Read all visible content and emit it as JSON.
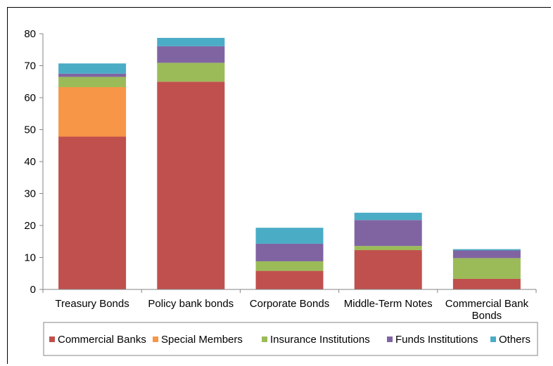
{
  "chart_data": {
    "type": "bar",
    "stacked": true,
    "categories": [
      [
        "Treasury Bonds"
      ],
      [
        "Policy bank bonds"
      ],
      [
        "Corporate Bonds"
      ],
      [
        "Middle-Term Notes"
      ],
      [
        "Commercial Bank",
        "Bonds"
      ]
    ],
    "series": [
      {
        "name": "Commercial Banks",
        "color": "#c0504d",
        "values": [
          47.8,
          65.0,
          5.8,
          12.3,
          3.3
        ]
      },
      {
        "name": "Special Members",
        "color": "#f79646",
        "values": [
          15.5,
          0.0,
          0.0,
          0.0,
          0.0
        ]
      },
      {
        "name": "Insurance Institutions",
        "color": "#9bbb59",
        "values": [
          3.2,
          5.9,
          3.0,
          1.3,
          6.5
        ]
      },
      {
        "name": "Funds Institutions",
        "color": "#8064a2",
        "values": [
          1.0,
          5.2,
          5.5,
          8.1,
          2.4
        ]
      },
      {
        "name": "Others",
        "color": "#4bacc6",
        "values": [
          3.2,
          2.6,
          5.0,
          2.3,
          0.4
        ]
      }
    ],
    "ylim": [
      0,
      80
    ],
    "yticks": [
      0,
      10,
      20,
      30,
      40,
      50,
      60,
      70,
      80
    ],
    "legend_position": "bottom",
    "grid": false
  }
}
